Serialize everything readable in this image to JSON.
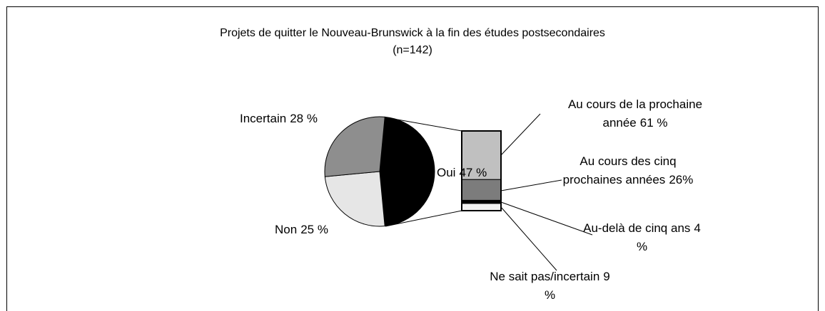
{
  "chart_data": {
    "type": "pie",
    "title": "Projets de quitter le Nouveau-Brunswick à la fin des études postsecondaires",
    "subtitle": "(n=142)",
    "categories": [
      "Oui",
      "Non",
      "Incertain"
    ],
    "values": [
      47,
      25,
      28
    ],
    "value_labels": [
      "47 %",
      "25 %",
      "28 %"
    ],
    "colors": [
      "#000000",
      "#e6e6e6",
      "#8e8e8e"
    ],
    "breakdown": {
      "categories": [
        "Au cours de la prochaine année",
        "Au cours des cinq prochaines années",
        "Au-delà de cinq ans",
        "Ne sait pas/incertain"
      ],
      "values": [
        61,
        26,
        4,
        9
      ],
      "value_labels": [
        "61 %",
        "26%",
        "4 %",
        "9 %"
      ],
      "colors": [
        "#c0c0c0",
        "#7c7c7c",
        "#000000",
        "#f2f2f2"
      ]
    }
  }
}
